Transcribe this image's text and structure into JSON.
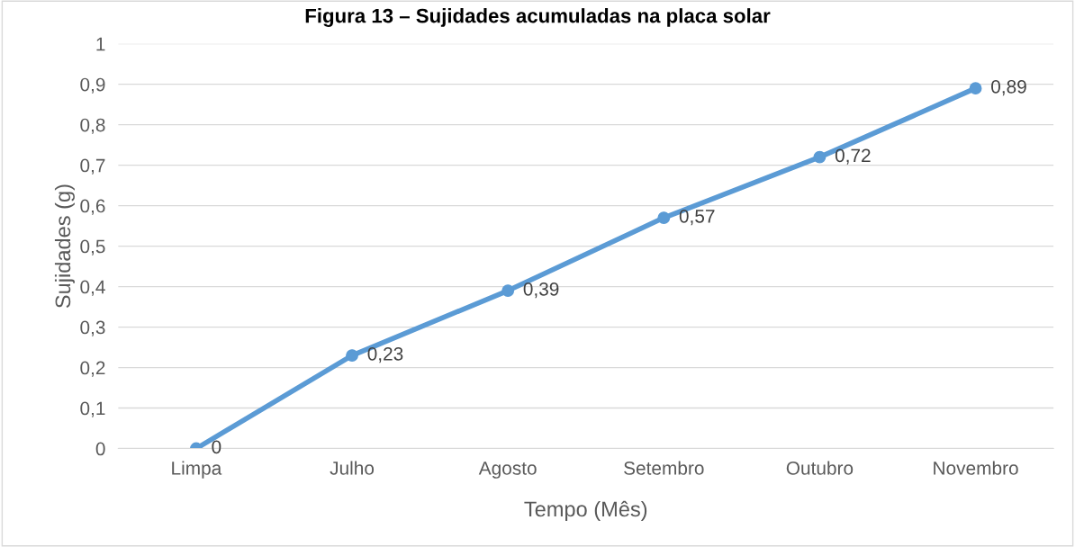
{
  "chart_data": {
    "type": "line",
    "title": "Figura 13 – Sujidades acumuladas na placa solar",
    "xlabel": "Tempo (Mês)",
    "ylabel": "Sujidades (g)",
    "categories": [
      "Limpa",
      "Julho",
      "Agosto",
      "Setembro",
      "Outubro",
      "Novembro"
    ],
    "series": [
      {
        "color": "#5b9bd5",
        "values": [
          0,
          0.23,
          0.39,
          0.57,
          0.72,
          0.89
        ],
        "value_labels": [
          "0",
          "0,23",
          "0,39",
          "0,57",
          "0,72",
          "0,89"
        ]
      }
    ],
    "ylim": [
      0,
      1
    ],
    "yticks": [
      {
        "value": 0,
        "label": "0"
      },
      {
        "value": 0.1,
        "label": "0,1"
      },
      {
        "value": 0.2,
        "label": "0,2"
      },
      {
        "value": 0.3,
        "label": "0,3"
      },
      {
        "value": 0.4,
        "label": "0,4"
      },
      {
        "value": 0.5,
        "label": "0,5"
      },
      {
        "value": 0.6,
        "label": "0,6"
      },
      {
        "value": 0.7,
        "label": "0,7"
      },
      {
        "value": 0.8,
        "label": "0,8"
      },
      {
        "value": 0.9,
        "label": "0,9"
      },
      {
        "value": 1,
        "label": "1"
      }
    ],
    "grid": "y",
    "marker": "circle",
    "line_style": "solid",
    "legend": false
  }
}
